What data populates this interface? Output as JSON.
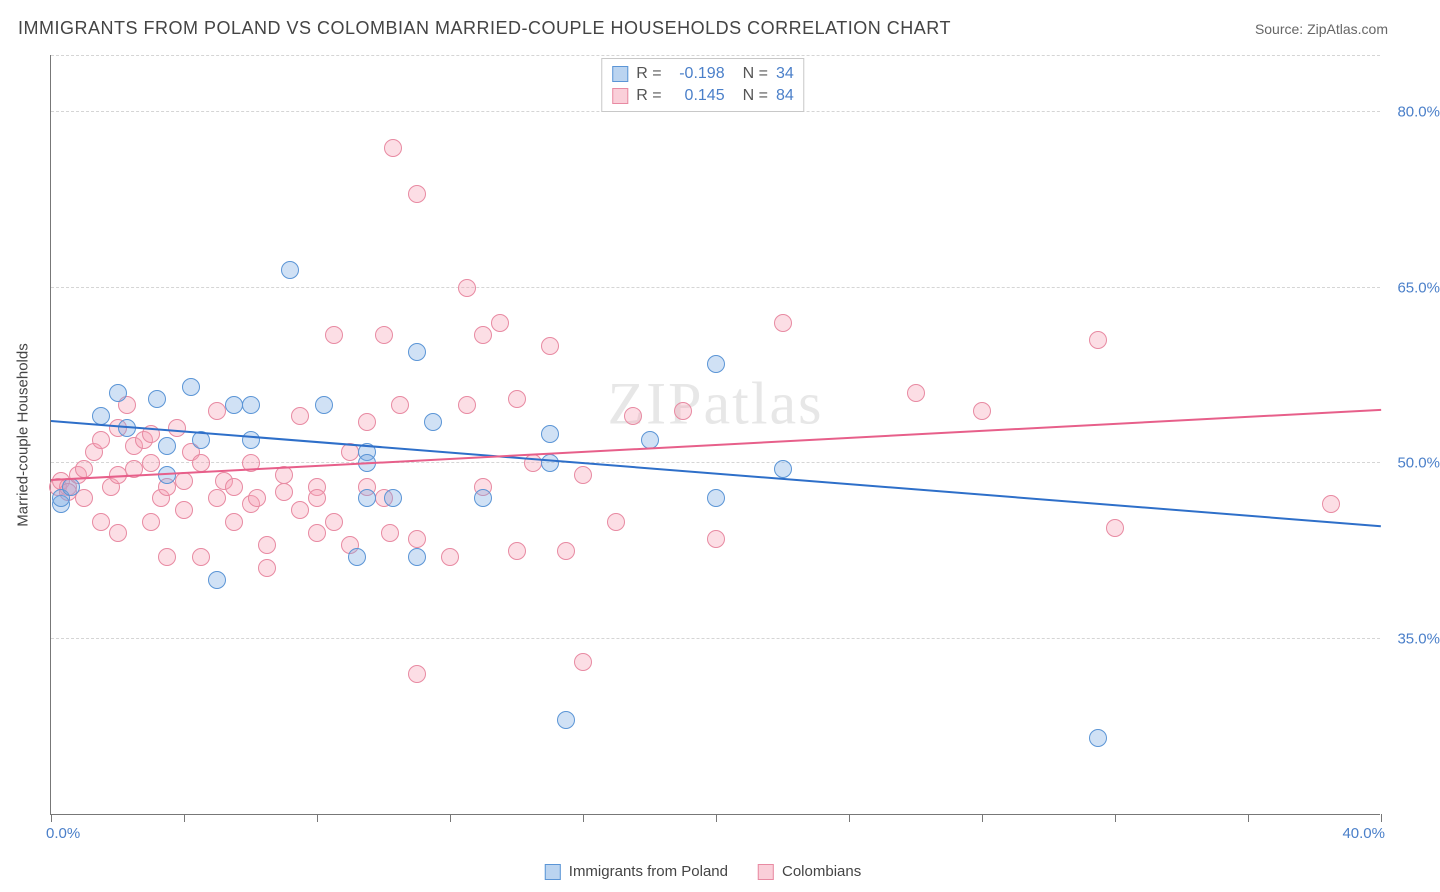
{
  "header": {
    "title": "IMMIGRANTS FROM POLAND VS COLOMBIAN MARRIED-COUPLE HOUSEHOLDS CORRELATION CHART",
    "source": "Source: ZipAtlas.com"
  },
  "chart": {
    "type": "scatter",
    "watermark": "ZIPatlas",
    "ylabel": "Married-couple Households",
    "xlim": [
      0,
      40
    ],
    "ylim": [
      20,
      85
    ],
    "x_ticks": [
      0,
      4,
      8,
      12,
      16,
      20,
      24,
      28,
      32,
      36,
      40
    ],
    "x_tick_labels": {
      "min": "0.0%",
      "max": "40.0%"
    },
    "y_grid": [
      {
        "v": 35,
        "label": "35.0%"
      },
      {
        "v": 50,
        "label": "50.0%"
      },
      {
        "v": 65,
        "label": "65.0%"
      },
      {
        "v": 80,
        "label": "80.0%"
      }
    ],
    "background_color": "#ffffff",
    "grid_color": "#d5d5d5",
    "marker_size": 18,
    "series": {
      "blue": {
        "name": "Immigrants from Poland",
        "fill": "rgba(120,170,225,0.35)",
        "stroke": "#5b95d6",
        "trend_color": "#2e6fc9",
        "trend": {
          "x1": 0,
          "y1": 53.5,
          "x2": 40,
          "y2": 44.5
        },
        "R": "-0.198",
        "N": "34",
        "points": [
          [
            0.3,
            46.5
          ],
          [
            0.3,
            47
          ],
          [
            0.6,
            48
          ],
          [
            1.5,
            54
          ],
          [
            2,
            56
          ],
          [
            2.3,
            53
          ],
          [
            3.2,
            55.5
          ],
          [
            3.5,
            49
          ],
          [
            3.5,
            51.5
          ],
          [
            4.2,
            56.5
          ],
          [
            4.5,
            52
          ],
          [
            5,
            40
          ],
          [
            5.5,
            55
          ],
          [
            6,
            55
          ],
          [
            6,
            52
          ],
          [
            7.2,
            66.5
          ],
          [
            8.2,
            55
          ],
          [
            9.2,
            42
          ],
          [
            9.5,
            51
          ],
          [
            9.5,
            50
          ],
          [
            9.5,
            47
          ],
          [
            10.3,
            47
          ],
          [
            11,
            59.5
          ],
          [
            11,
            42
          ],
          [
            11.5,
            53.5
          ],
          [
            13,
            47
          ],
          [
            15,
            50
          ],
          [
            15,
            52.5
          ],
          [
            15.5,
            28
          ],
          [
            18,
            52
          ],
          [
            20,
            58.5
          ],
          [
            22,
            49.5
          ],
          [
            31.5,
            26.5
          ],
          [
            20,
            47
          ]
        ]
      },
      "pink": {
        "name": "Colombians",
        "fill": "rgba(245,160,180,0.35)",
        "stroke": "#e88aa2",
        "trend_color": "#e75f8a",
        "trend": {
          "x1": 0,
          "y1": 48.5,
          "x2": 40,
          "y2": 54.5
        },
        "R": "0.145",
        "N": "84",
        "points": [
          [
            0.2,
            48
          ],
          [
            0.3,
            48.5
          ],
          [
            0.5,
            48
          ],
          [
            0.5,
            47.5
          ],
          [
            0.8,
            49
          ],
          [
            1,
            47
          ],
          [
            1,
            49.5
          ],
          [
            1.3,
            51
          ],
          [
            1.5,
            45
          ],
          [
            1.5,
            52
          ],
          [
            1.8,
            48
          ],
          [
            2,
            49
          ],
          [
            2,
            53
          ],
          [
            2,
            44
          ],
          [
            2.3,
            55
          ],
          [
            2.5,
            49.5
          ],
          [
            2.5,
            51.5
          ],
          [
            2.8,
            52
          ],
          [
            3,
            52.5
          ],
          [
            3,
            50
          ],
          [
            3,
            45
          ],
          [
            3.3,
            47
          ],
          [
            3.5,
            42
          ],
          [
            3.5,
            48
          ],
          [
            3.8,
            53
          ],
          [
            4,
            48.5
          ],
          [
            4,
            46
          ],
          [
            4.2,
            51
          ],
          [
            4.5,
            50
          ],
          [
            4.5,
            42
          ],
          [
            5,
            47
          ],
          [
            5,
            54.5
          ],
          [
            5.2,
            48.5
          ],
          [
            5.5,
            45
          ],
          [
            5.5,
            48
          ],
          [
            6,
            46.5
          ],
          [
            6,
            50
          ],
          [
            6.2,
            47
          ],
          [
            6.5,
            43
          ],
          [
            6.5,
            41
          ],
          [
            7,
            49
          ],
          [
            7,
            47.5
          ],
          [
            7.5,
            54
          ],
          [
            7.5,
            46
          ],
          [
            8,
            44
          ],
          [
            8,
            48
          ],
          [
            8,
            47
          ],
          [
            8.5,
            45
          ],
          [
            8.5,
            61
          ],
          [
            9,
            51
          ],
          [
            9,
            43
          ],
          [
            9.5,
            53.5
          ],
          [
            9.5,
            48
          ],
          [
            10,
            61
          ],
          [
            10,
            47
          ],
          [
            10.2,
            44
          ],
          [
            10.3,
            77
          ],
          [
            10.5,
            55
          ],
          [
            11,
            73
          ],
          [
            11,
            43.5
          ],
          [
            11,
            32
          ],
          [
            12,
            42
          ],
          [
            12.5,
            65
          ],
          [
            12.5,
            55
          ],
          [
            13,
            61
          ],
          [
            13,
            48
          ],
          [
            13.5,
            62
          ],
          [
            14,
            42.5
          ],
          [
            14,
            55.5
          ],
          [
            14.5,
            50
          ],
          [
            15,
            60
          ],
          [
            15.5,
            42.5
          ],
          [
            16,
            49
          ],
          [
            16,
            33
          ],
          [
            17,
            45
          ],
          [
            17.5,
            54
          ],
          [
            19,
            54.5
          ],
          [
            20,
            43.5
          ],
          [
            22,
            62
          ],
          [
            26,
            56
          ],
          [
            28,
            54.5
          ],
          [
            31.5,
            60.5
          ],
          [
            32,
            44.5
          ],
          [
            38.5,
            46.5
          ]
        ]
      }
    }
  },
  "legend_bottom": {
    "items": [
      {
        "swatch": "blue",
        "label": "Immigrants from Poland"
      },
      {
        "swatch": "pink",
        "label": "Colombians"
      }
    ]
  }
}
